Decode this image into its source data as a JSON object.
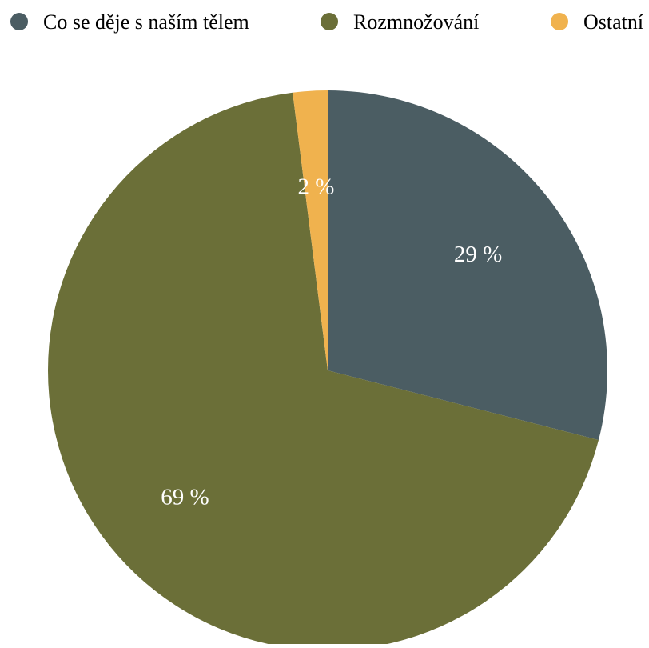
{
  "chart_data": {
    "type": "pie",
    "legend_position": "top",
    "categories": [
      "Co se děje s naším tělem",
      "Rozmnožování",
      "Ostatní"
    ],
    "values": [
      29,
      69,
      2
    ],
    "data_labels": [
      "29 %",
      "69 %",
      "2 %"
    ],
    "colors": [
      "#4b5d63",
      "#6b6f38",
      "#f0b24e"
    ],
    "start_angle_deg": 0,
    "direction": "clockwise"
  }
}
